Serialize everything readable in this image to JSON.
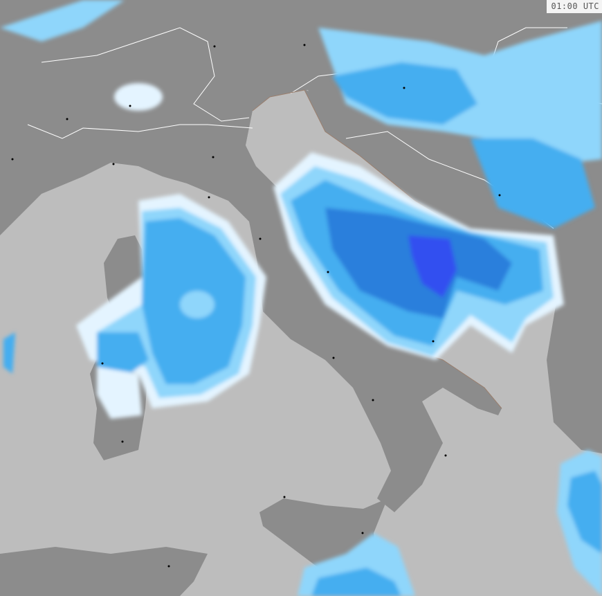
{
  "map": {
    "timestamp": "01:00 UTC",
    "colors": {
      "sea": "#bdbdbd",
      "land": "#8c8c8c",
      "border": "#ffffff",
      "coast": "#9a7f6e",
      "precip_very_light": "#e4f4ff",
      "precip_light": "#8fd6fb",
      "precip_moderate": "#45aef0",
      "precip_heavy": "#2a7fdc",
      "precip_very_heavy": "#3050f0"
    }
  }
}
